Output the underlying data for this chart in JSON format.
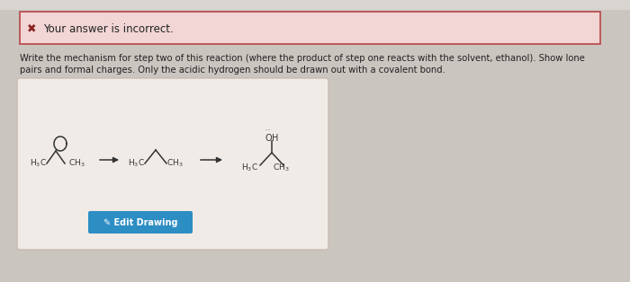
{
  "bg_color": "#cbc5c0",
  "top_bar_color": "#d8d3cf",
  "error_box_fill": "#f2d5d5",
  "error_box_edge": "#b85050",
  "error_x_color": "#8b2020",
  "error_text": "Your answer is incorrect.",
  "text_color": "#222222",
  "main_text_line1": "Write the mechanism for step two of this reaction (where the product of step one reacts with the solvent, ethanol). Show lone",
  "main_text_line2": "pairs and formal charges. Only the acidic hydrogen should be drawn out with a covalent bond.",
  "drawing_box_fill": "#f0ebe6",
  "drawing_box_edge": "#c8bbb0",
  "button_fill": "#2d8ec4",
  "button_text": "• Edit Drawing",
  "button_text_color": "#ffffff",
  "mol_color": "#333333",
  "fig_width": 7.0,
  "fig_height": 3.14,
  "dpi": 100
}
